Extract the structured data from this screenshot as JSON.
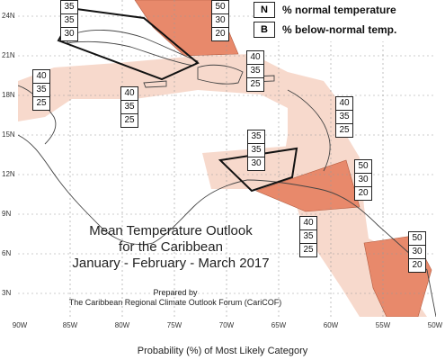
{
  "map": {
    "title_lines": [
      "Mean Temperature Outlook",
      "for the Caribbean",
      "January - February - March 2017"
    ],
    "prepared_label": "Prepared by",
    "prepared_by": "The Caribbean Regional Climate Outlook Forum (CariCOF)",
    "footer": "Probability (%) of Most Likely Category",
    "latitude_labels": [
      "24N",
      "21N",
      "18N",
      "15N",
      "12N",
      "9N",
      "6N",
      "3N"
    ],
    "longitude_labels": [
      "90W",
      "85W",
      "80W",
      "75W",
      "70W",
      "65W",
      "60W",
      "55W",
      "50W"
    ],
    "legend": [
      {
        "key": "N",
        "text": "% normal temperature"
      },
      {
        "key": "B",
        "text": "% below-normal temp."
      }
    ],
    "colors": {
      "dark_zone": "#e8896b",
      "light_zone": "#f7d9cc",
      "outline": "#111111",
      "land": "#444444",
      "grid": "#888888"
    }
  },
  "probability_boxes": [
    {
      "id": "bahamas",
      "values": [
        "35",
        "35",
        "30"
      ]
    },
    {
      "id": "turks",
      "values": [
        "50",
        "30",
        "20"
      ]
    },
    {
      "id": "yucatan",
      "values": [
        "40",
        "35",
        "25"
      ]
    },
    {
      "id": "cayman",
      "values": [
        "40",
        "35",
        "25"
      ]
    },
    {
      "id": "lesser-antilles-north",
      "values": [
        "40",
        "35",
        "25"
      ]
    },
    {
      "id": "lesser-antilles-east",
      "values": [
        "40",
        "35",
        "25"
      ]
    },
    {
      "id": "abc-islands",
      "values": [
        "35",
        "35",
        "30"
      ]
    },
    {
      "id": "trinidad",
      "values": [
        "50",
        "30",
        "20"
      ]
    },
    {
      "id": "guyana",
      "values": [
        "40",
        "35",
        "25"
      ]
    },
    {
      "id": "suriname",
      "values": [
        "50",
        "30",
        "20"
      ]
    }
  ]
}
